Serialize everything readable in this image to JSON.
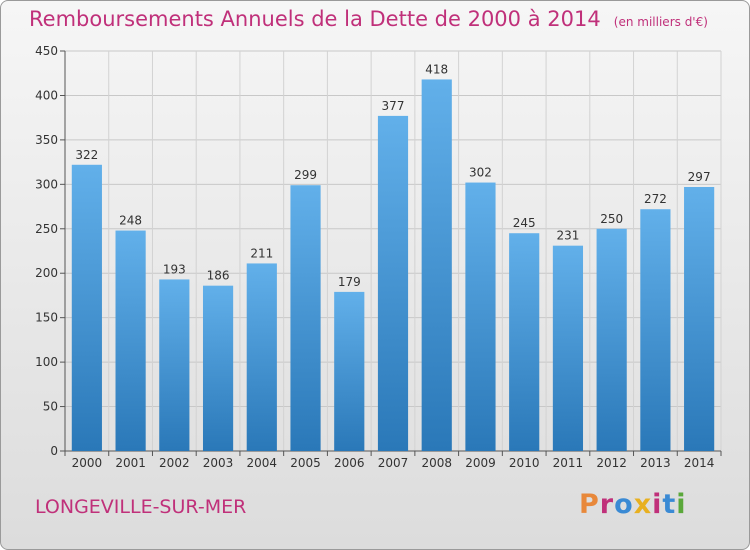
{
  "header": {
    "title": "Remboursements Annuels de la Dette de 2000 à 2014",
    "unit": "(en milliers d'€)"
  },
  "footer": {
    "place": "LONGEVILLE-SUR-MER",
    "logo": "Proxiti",
    "logo_colors": [
      "#e8883a",
      "#c0307a",
      "#3a8ad4",
      "#e8b020",
      "#c0307a",
      "#3a8ad4",
      "#5aa83a"
    ]
  },
  "colors": {
    "bar": "#3d94d8",
    "bar_light": "#62b0ea",
    "bar_dark": "#2a78b8",
    "title": "#c0307a"
  },
  "chart_data": {
    "type": "bar",
    "categories": [
      "2000",
      "2001",
      "2002",
      "2003",
      "2004",
      "2005",
      "2006",
      "2007",
      "2008",
      "2009",
      "2010",
      "2011",
      "2012",
      "2013",
      "2014"
    ],
    "values": [
      322,
      248,
      193,
      186,
      211,
      299,
      179,
      377,
      418,
      302,
      245,
      231,
      250,
      272,
      297
    ],
    "yticks": [
      0,
      50,
      100,
      150,
      200,
      250,
      300,
      350,
      400,
      450
    ],
    "ylim": [
      0,
      450
    ],
    "grid": true,
    "title": "Remboursements Annuels de la Dette de 2000 à 2014",
    "xlabel": "",
    "ylabel": ""
  }
}
